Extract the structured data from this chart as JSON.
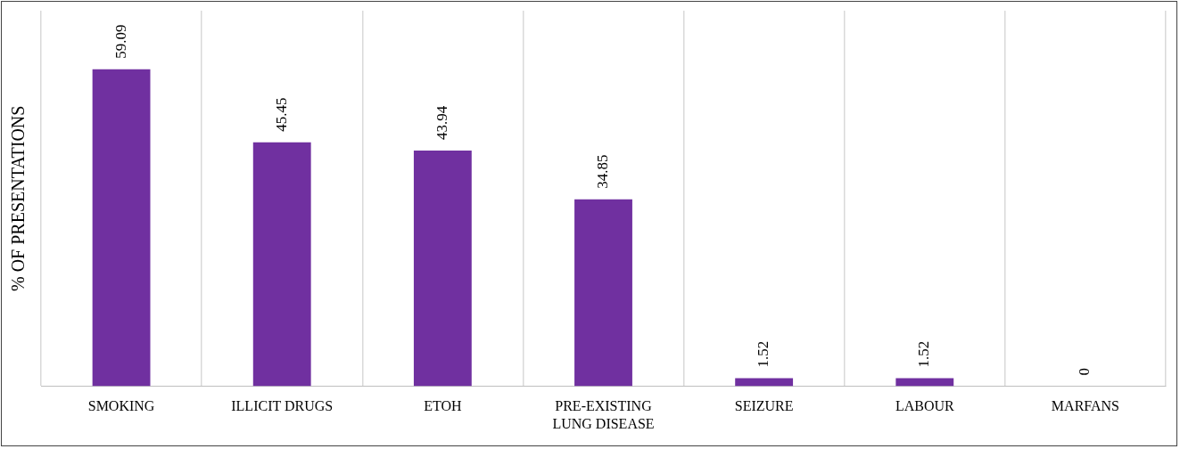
{
  "chart_data": {
    "type": "bar",
    "ylabel": "% OF PRESENTATIONS",
    "categories": [
      "SMOKING",
      "ILLICIT DRUGS",
      "ETOH",
      "PRE-EXISTING LUNG DISEASE",
      "SEIZURE",
      "LABOUR",
      "MARFANS"
    ],
    "values": [
      59.09,
      45.45,
      43.94,
      34.85,
      1.52,
      1.52,
      0
    ],
    "color": "#7030a0",
    "data_labels": true,
    "grid": "x",
    "tick_labels": "x",
    "legend": false
  }
}
